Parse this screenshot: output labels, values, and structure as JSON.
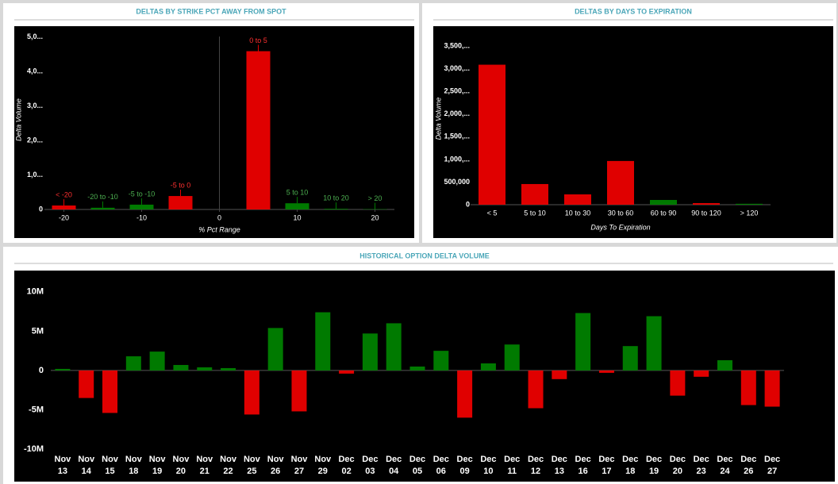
{
  "chart_data": [
    {
      "type": "bar",
      "title": "DELTAS BY STRIKE PCT AWAY FROM SPOT",
      "x_label": "% Pct Range",
      "y_label": "Delta Volume",
      "x": [
        -20,
        -15,
        -10,
        -5,
        5,
        10,
        15,
        20
      ],
      "bar_labels": [
        "< -20",
        "-20 to -10",
        "-5 to -10",
        "-5 to 0",
        "0 to 5",
        "5 to 10",
        "10 to 20",
        "> 20"
      ],
      "values": [
        115,
        50,
        140,
        390,
        4590,
        180,
        20,
        10
      ],
      "colors": [
        "#e00000",
        "#007a00",
        "#007a00",
        "#e00000",
        "#e00000",
        "#007a00",
        "#007a00",
        "#007a00"
      ],
      "xlim": [
        -22.5,
        22.5
      ],
      "xticks": [
        -20,
        -10,
        0,
        10,
        20
      ],
      "ylim": [
        0,
        5200
      ],
      "yticks": [
        0,
        {
          "value": 1000,
          "label": "1,0..."
        },
        {
          "value": 2000,
          "label": "2,0..."
        },
        {
          "value": 3000,
          "label": "3,0..."
        },
        {
          "value": 4000,
          "label": "4,0..."
        },
        {
          "value": 5000,
          "label": "5,0..."
        }
      ]
    },
    {
      "type": "bar",
      "title": "DELTAS BY DAYS TO EXPIRATION",
      "x_label": "Days To Expiration",
      "y_label": "Delta Volume",
      "categories": [
        "< 5",
        "5 to 10",
        "10 to 30",
        "30 to 60",
        "60 to 90",
        "90 to 120",
        "> 120"
      ],
      "values": [
        3090000,
        456000,
        228000,
        965000,
        105000,
        35000,
        20000
      ],
      "colors": [
        "#e00000",
        "#e00000",
        "#e00000",
        "#e00000",
        "#007a00",
        "#e00000",
        "#007a00"
      ],
      "ylim": [
        0,
        3800000
      ],
      "yticks": [
        0,
        {
          "value": 500000,
          "label": "500,000"
        },
        {
          "value": 1000000,
          "label": "1,000,..."
        },
        {
          "value": 1500000,
          "label": "1,500,..."
        },
        {
          "value": 2000000,
          "label": "2,000,..."
        },
        {
          "value": 2500000,
          "label": "2,500,..."
        },
        {
          "value": 3000000,
          "label": "3,000,..."
        },
        {
          "value": 3500000,
          "label": "3,500,..."
        }
      ]
    },
    {
      "type": "bar",
      "title": "HISTORICAL OPTION DELTA VOLUME",
      "categories": [
        "Nov 13",
        "Nov 14",
        "Nov 15",
        "Nov 18",
        "Nov 19",
        "Nov 20",
        "Nov 21",
        "Nov 22",
        "Nov 25",
        "Nov 26",
        "Nov 27",
        "Nov 29",
        "Dec 02",
        "Dec 03",
        "Dec 04",
        "Dec 05",
        "Dec 06",
        "Dec 09",
        "Dec 10",
        "Dec 11",
        "Dec 12",
        "Dec 13",
        "Dec 16",
        "Dec 17",
        "Dec 18",
        "Dec 19",
        "Dec 20",
        "Dec 23",
        "Dec 24",
        "Dec 26",
        "Dec 27"
      ],
      "values": [
        200000,
        -3500000,
        -5400000,
        1800000,
        2400000,
        700000,
        400000,
        300000,
        -5600000,
        5400000,
        -5200000,
        7400000,
        -400000,
        4700000,
        6000000,
        500000,
        2500000,
        -6000000,
        900000,
        3300000,
        -4800000,
        -1100000,
        7300000,
        -300000,
        3100000,
        6900000,
        -3200000,
        -800000,
        1300000,
        -4400000,
        -4600000
      ],
      "colors": [
        "#007a00",
        "#e00000",
        "#e00000",
        "#007a00",
        "#007a00",
        "#007a00",
        "#007a00",
        "#007a00",
        "#e00000",
        "#007a00",
        "#e00000",
        "#007a00",
        "#e00000",
        "#007a00",
        "#007a00",
        "#007a00",
        "#007a00",
        "#e00000",
        "#007a00",
        "#007a00",
        "#e00000",
        "#e00000",
        "#007a00",
        "#e00000",
        "#007a00",
        "#007a00",
        "#e00000",
        "#e00000",
        "#007a00",
        "#e00000",
        "#e00000"
      ],
      "ylim": [
        -10500000,
        12500000
      ],
      "yticks": [
        {
          "value": -10000000,
          "label": "-10M"
        },
        {
          "value": -5000000,
          "label": "-5M"
        },
        0,
        {
          "value": 5000000,
          "label": "5M"
        },
        {
          "value": 10000000,
          "label": "10M"
        }
      ]
    }
  ]
}
